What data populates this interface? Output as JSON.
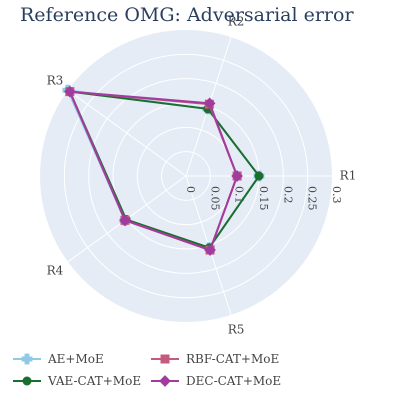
{
  "chart_data": {
    "type": "radar",
    "title": "Reference OMG: Adversarial error",
    "axes": [
      "R1",
      "R2",
      "R3",
      "R4",
      "R5"
    ],
    "radial_ticks": [
      "0",
      "0.05",
      "0.1",
      "0.15",
      "0.2",
      "0.25",
      "0.3"
    ],
    "radial_range": [
      0,
      0.3
    ],
    "legend_position": "bottom",
    "series": [
      {
        "name": "AE+MoE",
        "values": [
          0.15,
          0.145,
          0.3,
          0.155,
          0.155
        ],
        "color": "#8ecae6",
        "marker": "cross"
      },
      {
        "name": "VAE-CAT+MoE",
        "values": [
          0.15,
          0.145,
          0.295,
          0.152,
          0.155
        ],
        "color": "#1a6e2e",
        "marker": "circle"
      },
      {
        "name": "RBF-CAT+MoE",
        "values": [
          0.105,
          0.155,
          0.295,
          0.155,
          0.16
        ],
        "color": "#c45a7e",
        "marker": "square"
      },
      {
        "name": "DEC-CAT+MoE",
        "values": [
          0.105,
          0.157,
          0.295,
          0.155,
          0.16
        ],
        "color": "#a23b9e",
        "marker": "diamond"
      }
    ]
  }
}
